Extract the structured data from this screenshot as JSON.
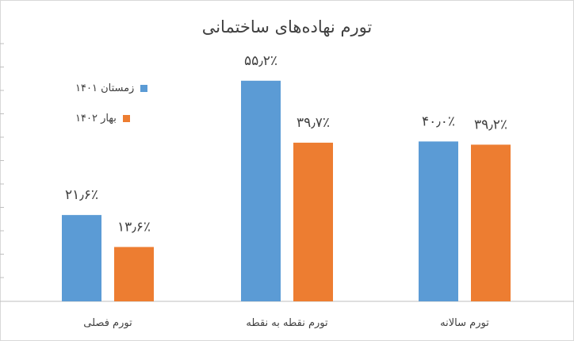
{
  "chart_data": {
    "type": "bar",
    "title": "تورم نهاده‌های ساختمانی",
    "categories": [
      "تورم فصلی",
      "تورم نقطه به نقطه",
      "تورم سالانه"
    ],
    "series": [
      {
        "name": "زمستان ۱۴۰۱",
        "color": "#5b9bd5",
        "values": [
          21.6,
          55.2,
          40.0
        ],
        "labels": [
          "۲۱٫۶٪",
          "۵۵٫۲٪",
          "۴۰٫۰٪"
        ]
      },
      {
        "name": "بهار ۱۴۰۲",
        "color": "#ed7d31",
        "values": [
          13.6,
          39.7,
          39.2
        ],
        "labels": [
          "۱۳٫۶٪",
          "۳۹٫۷٪",
          "۳۹٫۲٪"
        ]
      }
    ],
    "ylim": [
      0,
      60
    ],
    "grid": false,
    "legend_position": "top-left"
  }
}
